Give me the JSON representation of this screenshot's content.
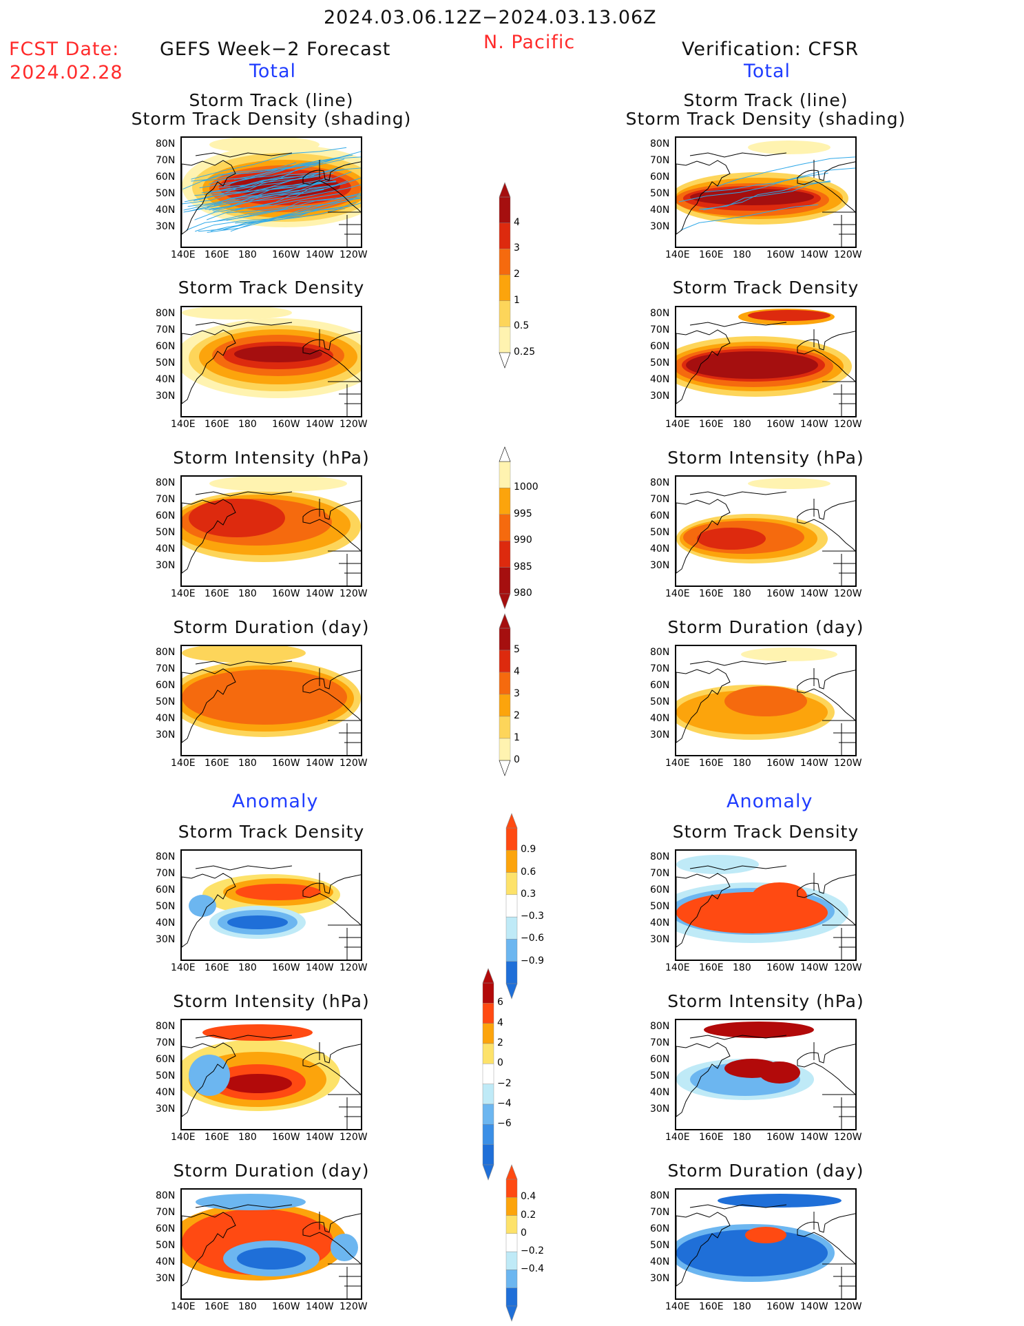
{
  "header": {
    "date_range": "2024.03.06.12Z−2024.03.13.06Z",
    "region": "N. Pacific",
    "fcst_label": "FCST Date:",
    "fcst_date": "2024.02.28",
    "left_title": "GEFS Week−2 Forecast",
    "right_title": "Verification: CFSR",
    "total_label": "Total",
    "anomaly_label": "Anomaly"
  },
  "axes": {
    "lat_ticks": [
      "80N",
      "70N",
      "60N",
      "50N",
      "40N",
      "30N"
    ],
    "lon_ticks": [
      "140E",
      "160E",
      "180",
      "160W",
      "140W",
      "120W"
    ]
  },
  "panels": [
    {
      "id": "fcst-track",
      "col": "left",
      "title1": "Storm Track (line)",
      "title2": "Storm Track Density (shading)"
    },
    {
      "id": "ver-track",
      "col": "right",
      "title1": "Storm Track (line)",
      "title2": "Storm Track Density (shading)"
    },
    {
      "id": "fcst-density",
      "col": "left",
      "title1": "Storm Track Density"
    },
    {
      "id": "ver-density",
      "col": "right",
      "title1": "Storm Track Density"
    },
    {
      "id": "fcst-intensity",
      "col": "left",
      "title1": "Storm Intensity (hPa)"
    },
    {
      "id": "ver-intensity",
      "col": "right",
      "title1": "Storm Intensity (hPa)"
    },
    {
      "id": "fcst-duration",
      "col": "left",
      "title1": "Storm Duration (day)"
    },
    {
      "id": "ver-duration",
      "col": "right",
      "title1": "Storm Duration (day)"
    },
    {
      "id": "fcst-anom-density",
      "col": "left",
      "title1": "Storm Track Density"
    },
    {
      "id": "ver-anom-density",
      "col": "right",
      "title1": "Storm Track Density"
    },
    {
      "id": "fcst-anom-intensity",
      "col": "left",
      "title1": "Storm Intensity (hPa)"
    },
    {
      "id": "ver-anom-intensity",
      "col": "right",
      "title1": "Storm Intensity (hPa)"
    },
    {
      "id": "fcst-anom-duration",
      "col": "left",
      "title1": "Storm Duration (day)"
    },
    {
      "id": "ver-anom-duration",
      "col": "right",
      "title1": "Storm Duration (day)"
    }
  ],
  "colorbars": [
    {
      "id": "density",
      "labels": [
        "4",
        "3",
        "2",
        "1",
        "0.5",
        "0.25"
      ],
      "colors": [
        "#a50f0f",
        "#dd2a0e",
        "#f56a0e",
        "#fca40c",
        "#fdd55a",
        "#fff3b0"
      ]
    },
    {
      "id": "intensity",
      "labels": [
        "1000",
        "995",
        "990",
        "985",
        "980"
      ],
      "colors": [
        "#fff3b0",
        "#fca40c",
        "#f56a0e",
        "#dd2a0e",
        "#a50f0f"
      ]
    },
    {
      "id": "duration",
      "labels": [
        "5",
        "4",
        "3",
        "2",
        "1",
        "0"
      ],
      "colors": [
        "#a50f0f",
        "#dd2a0e",
        "#f56a0e",
        "#fca40c",
        "#fdd55a",
        "#fff3b0"
      ]
    },
    {
      "id": "anom-density",
      "labels": [
        "0.9",
        "0.6",
        "0.3",
        "−0.3",
        "−0.6",
        "−0.9"
      ],
      "colors": [
        "#ff4a12",
        "#fca40c",
        "#fde26a",
        "#ffffff",
        "#bfeaf7",
        "#6cb6f0",
        "#1f6fd8"
      ]
    },
    {
      "id": "anom-intensity",
      "labels": [
        "6",
        "4",
        "2",
        "0",
        "−2",
        "−4",
        "−6"
      ],
      "colors": [
        "#b20a0a",
        "#ff4a12",
        "#fca40c",
        "#fde26a",
        "#ffffff",
        "#bfeaf7",
        "#6cb6f0",
        "#3b8fe6",
        "#1f6fd8"
      ]
    },
    {
      "id": "anom-duration",
      "labels": [
        "0.4",
        "0.2",
        "0",
        "−0.2",
        "−0.4"
      ],
      "colors": [
        "#ff4a12",
        "#fca40c",
        "#fde26a",
        "#ffffff",
        "#bfeaf7",
        "#6cb6f0",
        "#1f6fd8"
      ]
    }
  ],
  "chart_data": [
    {
      "type": "heatmap",
      "title": "Storm Track (line) / Storm Track Density (shading)",
      "source": "GEFS Week−2 Forecast",
      "x": "longitude 140E–110W",
      "y": "latitude 25N–85N",
      "peak": "~50N, 165E–145W (>4)"
    },
    {
      "type": "heatmap",
      "title": "Storm Track (line) / Storm Track Density (shading)",
      "source": "Verification: CFSR",
      "peak": "band 35N–60N, 150E–140W (>4)"
    },
    {
      "type": "heatmap",
      "title": "Storm Track Density",
      "source": "GEFS Week−2 Forecast",
      "range": [
        0.25,
        4
      ]
    },
    {
      "type": "heatmap",
      "title": "Storm Track Density",
      "source": "Verification: CFSR",
      "range": [
        0.25,
        4
      ]
    },
    {
      "type": "heatmap",
      "title": "Storm Intensity (hPa)",
      "source": "GEFS Week−2 Forecast",
      "range": [
        980,
        1000
      ]
    },
    {
      "type": "heatmap",
      "title": "Storm Intensity (hPa)",
      "source": "Verification: CFSR",
      "range": [
        980,
        1000
      ]
    },
    {
      "type": "heatmap",
      "title": "Storm Duration (day)",
      "source": "GEFS Week−2 Forecast",
      "range": [
        0,
        5
      ]
    },
    {
      "type": "heatmap",
      "title": "Storm Duration (day)",
      "source": "Verification: CFSR",
      "range": [
        0,
        5
      ]
    },
    {
      "type": "heatmap",
      "title": "Storm Track Density (Anomaly)",
      "source": "GEFS Week−2 Forecast",
      "range": [
        -0.9,
        0.9
      ]
    },
    {
      "type": "heatmap",
      "title": "Storm Track Density (Anomaly)",
      "source": "Verification: CFSR",
      "range": [
        -0.9,
        0.9
      ]
    },
    {
      "type": "heatmap",
      "title": "Storm Intensity (hPa) (Anomaly)",
      "source": "GEFS Week−2 Forecast",
      "range": [
        -6,
        6
      ]
    },
    {
      "type": "heatmap",
      "title": "Storm Intensity (hPa) (Anomaly)",
      "source": "Verification: CFSR",
      "range": [
        -6,
        6
      ]
    },
    {
      "type": "heatmap",
      "title": "Storm Duration (day) (Anomaly)",
      "source": "GEFS Week−2 Forecast",
      "range": [
        -0.4,
        0.4
      ]
    },
    {
      "type": "heatmap",
      "title": "Storm Duration (day) (Anomaly)",
      "source": "Verification: CFSR",
      "range": [
        -0.4,
        0.4
      ]
    }
  ]
}
